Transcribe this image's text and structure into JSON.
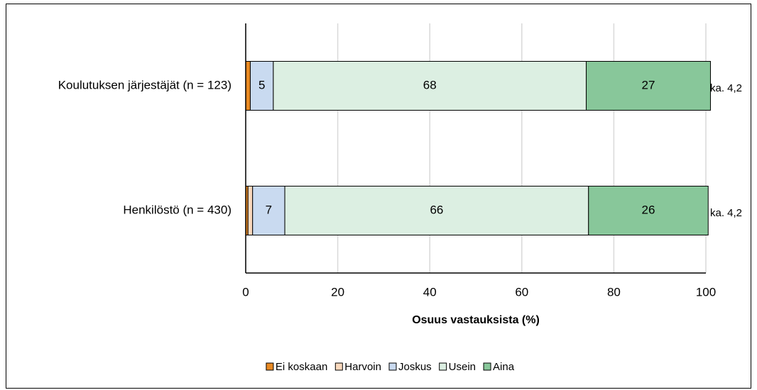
{
  "chart_data": {
    "type": "stacked_barh",
    "categories": [
      "Koulutuksen järjestäjät (n = 123)",
      "Henkilöstö (n = 430)"
    ],
    "series": [
      {
        "name": "Ei koskaan",
        "color": "#e98a23",
        "values": [
          1,
          0.5
        ]
      },
      {
        "name": "Harvoin",
        "color": "#fbd9bd",
        "values": [
          0,
          1
        ]
      },
      {
        "name": "Joskus",
        "color": "#c9daf0",
        "values": [
          5,
          7
        ]
      },
      {
        "name": "Usein",
        "color": "#dcefe2",
        "values": [
          68,
          66
        ]
      },
      {
        "name": "Aina",
        "color": "#88c79a",
        "values": [
          27,
          26
        ]
      }
    ],
    "annotations": [
      "ka. 4,2",
      "ka. 4,2"
    ],
    "xlabel": "Osuus vastauksista (%)",
    "xlim": [
      0,
      100
    ],
    "xticks": [
      0,
      20,
      40,
      60,
      80,
      100
    ],
    "grid": true,
    "legend": "bottom"
  }
}
